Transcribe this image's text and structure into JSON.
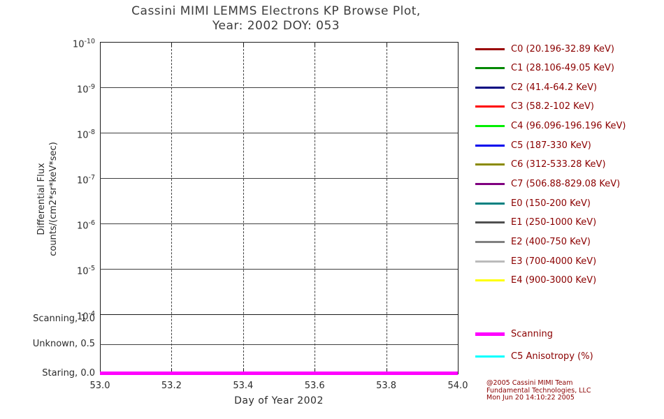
{
  "title": {
    "line1": "Cassini MIMI LEMMS Electrons KP Browse Plot,",
    "line2": "Year: 2002 DOY: 053"
  },
  "axes": {
    "x": {
      "label": "Day of Year 2002",
      "ticks": [
        "53.0",
        "53.2",
        "53.4",
        "53.6",
        "53.8",
        "54.0"
      ]
    },
    "y": {
      "label_line1": "Differential Flux",
      "label_line2": "counts/(cm2*sr*keV*sec)"
    },
    "mode": {
      "ticks": [
        {
          "label": "Scanning, 1.0",
          "value": 1.0
        },
        {
          "label": "Unknown, 0.5",
          "value": 0.5
        },
        {
          "label": "Staring, 0.0",
          "value": 0.0
        }
      ]
    }
  },
  "legend": {
    "channels": [
      {
        "label": "C0 (20.196-32.89 KeV)",
        "color": "#990000"
      },
      {
        "label": "C1 (28.106-49.05 KeV)",
        "color": "#008800"
      },
      {
        "label": "C2 (41.4-64.2 KeV)",
        "color": "#000080"
      },
      {
        "label": "C3 (58.2-102 KeV)",
        "color": "#ff0000"
      },
      {
        "label": "C4 (96.096-196.196 KeV)",
        "color": "#00ee00"
      },
      {
        "label": "C5 (187-330 KeV)",
        "color": "#0000ee"
      },
      {
        "label": "C6 (312-533.28 KeV)",
        "color": "#8b8b00"
      },
      {
        "label": "C7 (506.88-829.08 KeV)",
        "color": "#800080"
      },
      {
        "label": "E0 (150-200 KeV)",
        "color": "#008080"
      },
      {
        "label": "E1 (250-1000 KeV)",
        "color": "#505050"
      },
      {
        "label": "E2 (400-750 KeV)",
        "color": "#808080"
      },
      {
        "label": "E3 (700-4000 KeV)",
        "color": "#bbbbbb"
      },
      {
        "label": "E4 (900-3000 KeV)",
        "color": "#ffff00"
      }
    ],
    "extra": [
      {
        "label": "Scanning",
        "color": "#ff00ff",
        "thick": true
      },
      {
        "label": "C5 Anisotropy (%)",
        "color": "#00ffff",
        "thick": false
      }
    ]
  },
  "credits": {
    "line1": "@2005 Cassini MIMI Team",
    "line2": "Fundamental Technologies, LLC",
    "line3": "Mon Jun 20 14:10:22 2005"
  },
  "chart_data": {
    "type": "line",
    "title": "Cassini MIMI LEMMS Electrons KP Browse Plot, Year: 2002 DOY: 053",
    "xlabel": "Day of Year 2002",
    "ylabel": "Differential Flux counts/(cm2*sr*keV*sec)",
    "x_range": [
      53.0,
      54.0
    ],
    "x_ticks": [
      53.0,
      53.2,
      53.4,
      53.6,
      53.8,
      54.0
    ],
    "y_axis": {
      "scale": "log",
      "tick_exponents": [
        -10,
        -9,
        -8,
        -7,
        -6,
        -5,
        -4
      ]
    },
    "mode_axis": {
      "range": [
        0.0,
        1.0
      ],
      "ticks": [
        {
          "value": 1.0,
          "label": "Scanning"
        },
        {
          "value": 0.5,
          "label": "Unknown"
        },
        {
          "value": 0.0,
          "label": "Staring"
        }
      ]
    },
    "grid": {
      "horizontal": "solid",
      "vertical": "dashed"
    },
    "legend_position": "right",
    "series": [
      {
        "name": "Scanning",
        "axis": "mode",
        "color": "#ff00ff",
        "x": [
          53.0,
          54.0
        ],
        "values": [
          0.0,
          0.0
        ]
      }
    ]
  }
}
